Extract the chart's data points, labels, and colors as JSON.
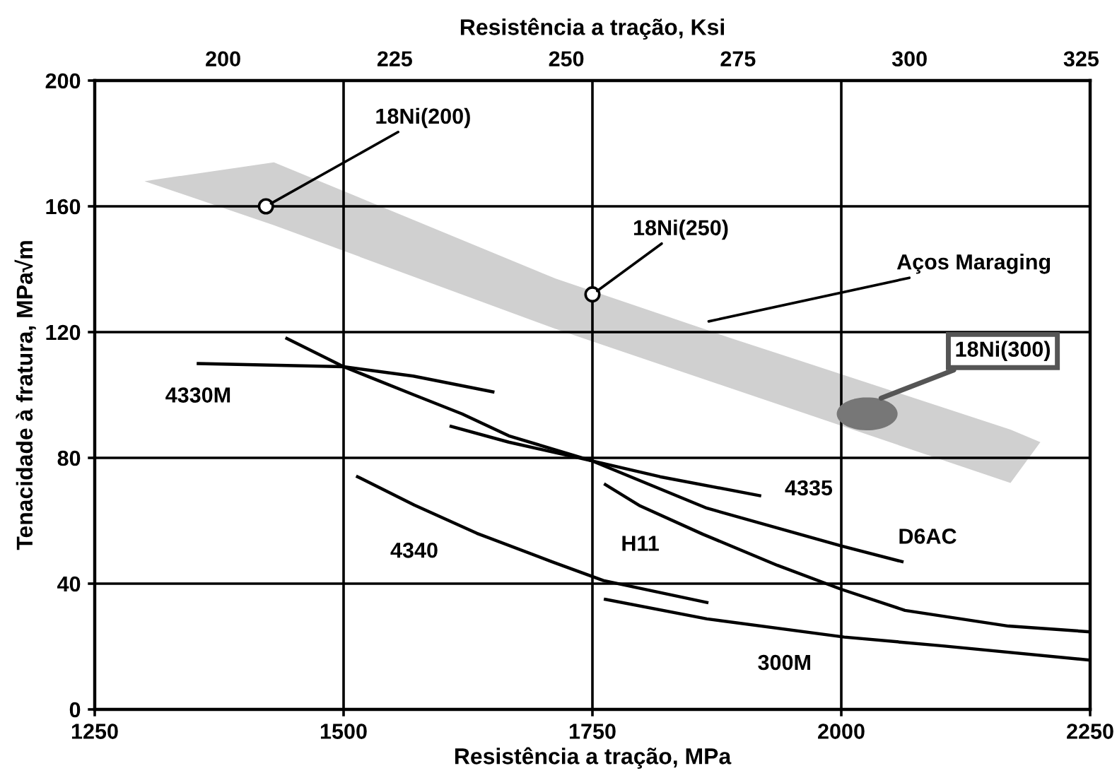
{
  "chart_data": {
    "type": "line",
    "xlabel": "Resistência a tração, MPa",
    "ylabel": "Tenacidade à fratura, MPa√m",
    "x2label": "Resistência a tração, Ksi",
    "xlim": [
      1250,
      2250
    ],
    "xticks": [
      1250,
      1500,
      1750,
      2000,
      2250
    ],
    "ylim": [
      0,
      200
    ],
    "yticks": [
      0,
      40,
      80,
      120,
      160,
      200
    ],
    "x2lim": [
      181.3,
      326.3
    ],
    "x2ticks": [
      200,
      225,
      250,
      275,
      300,
      325
    ],
    "grid": true,
    "line_style": "solid",
    "series": [
      {
        "type": "line",
        "color": "#d0d0d0",
        "x": [
          1300,
          1430,
          1713,
          1890,
          2170,
          2200
        ],
        "values": [
          null,
          null,
          null,
          null,
          null,
          null
        ],
        "upper": [
          168,
          174,
          137,
          118,
          89,
          85
        ],
        "lower": [
          168,
          154,
          121,
          102,
          72,
          85
        ]
      },
      {
        "color": "#000000",
        "x": [
          1354,
          1500,
          1570,
          1650
        ],
        "values": [
          110,
          109,
          106,
          101
        ]
      },
      {
        "color": "#000000",
        "x": [
          1443,
          1500,
          1571,
          1619,
          1666,
          1750,
          1865,
          2000,
          2061
        ],
        "values": [
          118,
          109,
          100,
          94,
          87,
          79,
          64,
          52,
          47
        ]
      },
      {
        "color": "#000000",
        "x": [
          1608,
          1666,
          1750,
          1818,
          1918
        ],
        "values": [
          90,
          85,
          79,
          74,
          68
        ]
      },
      {
        "color": "#000000",
        "x": [
          1514,
          1571,
          1634,
          1709,
          1761,
          1865
        ],
        "values": [
          74,
          65,
          56,
          47,
          41,
          34
        ]
      },
      {
        "color": "#000000",
        "x": [
          1763,
          1798,
          1861,
          1936,
          2000,
          2064,
          2168,
          2249
        ],
        "values": [
          71.5,
          64.7,
          55.7,
          45.8,
          38.2,
          31.5,
          26.5,
          24.7
        ]
      },
      {
        "color": "#000000",
        "x": [
          1763,
          1865,
          2003,
          2102,
          2249
        ],
        "values": [
          35,
          28.8,
          23,
          20.2,
          15.7
        ]
      },
      {
        "type": "scatter",
        "color": "#ffffff",
        "marker": "circle",
        "x": [
          1422,
          1750
        ],
        "values": [
          160,
          132
        ]
      },
      {
        "type": "scatter",
        "color": "#777777",
        "marker": "circle",
        "x": [
          2026
        ],
        "values": [
          94
        ]
      }
    ],
    "annotations": [
      {
        "text": "18Ni(200)",
        "x": 1422,
        "y": 160
      },
      {
        "text": "18Ni(250)",
        "x": 1750,
        "y": 132
      },
      {
        "text": "Aços Maraging",
        "x": 1861,
        "y": 123
      },
      {
        "text": "18Ni(300)",
        "x": 2040,
        "y": 99
      },
      {
        "text": "4330M",
        "x": 1354,
        "y": 110
      },
      {
        "text": "4335",
        "x": 1918,
        "y": 68
      },
      {
        "text": "D6AC",
        "x": 2061,
        "y": 47
      },
      {
        "text": "H11",
        "x": 1798,
        "y": 64.7
      },
      {
        "text": "4340",
        "x": 1571,
        "y": 65
      },
      {
        "text": "300M",
        "x": 1943,
        "y": 25.6
      }
    ]
  }
}
